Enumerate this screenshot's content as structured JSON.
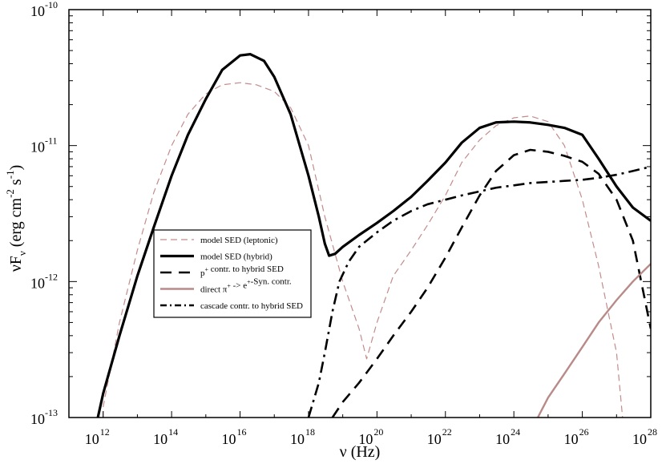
{
  "chart_data": {
    "type": "line",
    "xlabel": "ν (Hz)",
    "ylabel": "νF_ν (erg cm^-2 s^-1)",
    "ylabel_parts": {
      "base": "νF",
      "sub": "ν",
      "unit_open": " (erg cm",
      "exp1": "-2",
      "mid": " s",
      "exp2": "-1",
      "unit_close": ")"
    },
    "x_scale": "log",
    "y_scale": "log",
    "xlim": [
      100000000000.0,
      1e+28
    ],
    "ylim": [
      1e-13,
      1e-10
    ],
    "grid": false,
    "legend_position": "center-left",
    "x_ticks": [
      {
        "base": "10",
        "exp": "12",
        "value": 1000000000000.0
      },
      {
        "base": "10",
        "exp": "14",
        "value": 100000000000000.0
      },
      {
        "base": "10",
        "exp": "16",
        "value": 1e+16
      },
      {
        "base": "10",
        "exp": "18",
        "value": 1e+18
      },
      {
        "base": "10",
        "exp": "20",
        "value": 1e+20
      },
      {
        "base": "10",
        "exp": "22",
        "value": 1e+22
      },
      {
        "base": "10",
        "exp": "24",
        "value": 1e+24
      },
      {
        "base": "10",
        "exp": "26",
        "value": 1e+26
      },
      {
        "base": "10",
        "exp": "28",
        "value": 1e+28
      }
    ],
    "y_ticks": [
      {
        "base": "10",
        "exp": "-13",
        "value": 1e-13
      },
      {
        "base": "10",
        "exp": "-12",
        "value": 1e-12
      },
      {
        "base": "10",
        "exp": "-11",
        "value": 1e-11
      },
      {
        "base": "10",
        "exp": "-10",
        "value": 1e-10
      }
    ],
    "series": [
      {
        "name": "model SED (leptonic)",
        "legend_parts": [
          "model SED (leptonic)"
        ],
        "color": "#c48b8b",
        "style": "dashed-thin",
        "points": [
          [
            1000000000000.0,
            1e-13
          ],
          [
            1000000000000.0,
            1.2e-13
          ],
          [
            3000000000000.0,
            5e-13
          ],
          [
            10000000000000.0,
            1.7e-12
          ],
          [
            30000000000000.0,
            4.5e-12
          ],
          [
            100000000000000.0,
            1e-11
          ],
          [
            300000000000000.0,
            1.7e-11
          ],
          [
            1000000000000000.0,
            2.4e-11
          ],
          [
            3000000000000000.0,
            2.8e-11
          ],
          [
            1e+16,
            2.9e-11
          ],
          [
            3e+16,
            2.8e-11
          ],
          [
            1e+17,
            2.5e-11
          ],
          [
            3e+17,
            1.9e-11
          ],
          [
            1e+18,
            1e-11
          ],
          [
            3e+18,
            3e-12
          ],
          [
            1e+19,
            1e-12
          ],
          [
            3e+19,
            4.5e-13
          ],
          [
            5e+19,
            2.7e-13
          ],
          [
            1e+20,
            5e-13
          ],
          [
            3e+20,
            1.1e-12
          ],
          [
            1e+21,
            1.7e-12
          ],
          [
            3e+21,
            2.6e-12
          ],
          [
            1e+22,
            4.3e-12
          ],
          [
            3e+22,
            7.5e-12
          ],
          [
            1e+23,
            1.1e-11
          ],
          [
            3e+23,
            1.4e-11
          ],
          [
            1e+24,
            1.6e-11
          ],
          [
            3e+24,
            1.65e-11
          ],
          [
            1e+25,
            1.5e-11
          ],
          [
            3e+25,
            1e-11
          ],
          [
            1e+26,
            4e-12
          ],
          [
            3e+26,
            1.3e-12
          ],
          [
            1e+27,
            3e-13
          ],
          [
            1.5e+27,
            1e-13
          ]
        ]
      },
      {
        "name": "model SED (hybrid)",
        "legend_parts": [
          "model SED (hybrid)"
        ],
        "color": "#000000",
        "style": "solid-thick",
        "points": [
          [
            700000000000.0,
            1e-13
          ],
          [
            1000000000000.0,
            1.5e-13
          ],
          [
            3000000000000.0,
            4e-13
          ],
          [
            10000000000000.0,
            1.1e-12
          ],
          [
            30000000000000.0,
            2.5e-12
          ],
          [
            100000000000000.0,
            6e-12
          ],
          [
            300000000000000.0,
            1.2e-11
          ],
          [
            1000000000000000.0,
            2.2e-11
          ],
          [
            3000000000000000.0,
            3.6e-11
          ],
          [
            1e+16,
            4.6e-11
          ],
          [
            2e+16,
            4.7e-11
          ],
          [
            5e+16,
            4.2e-11
          ],
          [
            1e+17,
            3.2e-11
          ],
          [
            3e+17,
            1.7e-11
          ],
          [
            1e+18,
            6e-12
          ],
          [
            2e+18,
            3e-12
          ],
          [
            3e+18,
            1.9e-12
          ],
          [
            4e+18,
            1.55e-12
          ],
          [
            6e+18,
            1.6e-12
          ],
          [
            1e+19,
            1.8e-12
          ],
          [
            3e+19,
            2.2e-12
          ],
          [
            1e+20,
            2.7e-12
          ],
          [
            3e+20,
            3.3e-12
          ],
          [
            1e+21,
            4.2e-12
          ],
          [
            3e+21,
            5.5e-12
          ],
          [
            1e+22,
            7.5e-12
          ],
          [
            3e+22,
            1.05e-11
          ],
          [
            1e+23,
            1.35e-11
          ],
          [
            3e+23,
            1.48e-11
          ],
          [
            1e+24,
            1.5e-11
          ],
          [
            3e+24,
            1.48e-11
          ],
          [
            1e+25,
            1.42e-11
          ],
          [
            3e+25,
            1.35e-11
          ],
          [
            1e+26,
            1.2e-11
          ],
          [
            3e+26,
            8e-12
          ],
          [
            1e+27,
            5e-12
          ],
          [
            3e+27,
            3.5e-12
          ],
          [
            1e+28,
            2.8e-12
          ]
        ]
      },
      {
        "name": "p+ contr. to hybrid SED",
        "legend_parts": [
          "p",
          "+",
          " contr. to hybrid SED"
        ],
        "color": "#000000",
        "style": "dashed-thick",
        "points": [
          [
            5e+18,
            1e-13
          ],
          [
            1e+19,
            1.3e-13
          ],
          [
            3e+19,
            1.8e-13
          ],
          [
            1e+20,
            2.7e-13
          ],
          [
            3e+20,
            4e-13
          ],
          [
            1e+21,
            6e-13
          ],
          [
            3e+21,
            9e-13
          ],
          [
            1e+22,
            1.5e-12
          ],
          [
            3e+22,
            2.5e-12
          ],
          [
            1e+23,
            4.3e-12
          ],
          [
            3e+23,
            6.5e-12
          ],
          [
            1e+24,
            8.5e-12
          ],
          [
            3e+24,
            9.3e-12
          ],
          [
            1e+25,
            9e-12
          ],
          [
            3e+25,
            8.4e-12
          ],
          [
            1e+26,
            7.6e-12
          ],
          [
            3e+26,
            6.2e-12
          ],
          [
            1e+27,
            4e-12
          ],
          [
            3e+27,
            2e-12
          ],
          [
            1e+28,
            4.5e-13
          ]
        ]
      },
      {
        "name": "direct π+ -> e+-Syn. contr.",
        "legend_parts": [
          "direct π",
          "+",
          " -> e",
          "+",
          "-Syn. contr."
        ],
        "color": "#b88a88",
        "style": "solid-medium",
        "points": [
          [
            5e+24,
            1e-13
          ],
          [
            1e+25,
            1.4e-13
          ],
          [
            3e+25,
            2.1e-13
          ],
          [
            1e+26,
            3.3e-13
          ],
          [
            3e+26,
            5e-13
          ],
          [
            1e+27,
            7.3e-13
          ],
          [
            3e+27,
            1e-12
          ],
          [
            1e+28,
            1.35e-12
          ]
        ]
      },
      {
        "name": "cascade contr. to hybrid SED",
        "legend_parts": [
          "cascade contr. to hybrid SED"
        ],
        "color": "#000000",
        "style": "dashdot-thick",
        "points": [
          [
            1e+18,
            1e-13
          ],
          [
            2e+18,
            1.8e-13
          ],
          [
            3e+18,
            3e-13
          ],
          [
            5e+18,
            6e-13
          ],
          [
            8e+18,
            1e-12
          ],
          [
            1.5e+19,
            1.4e-12
          ],
          [
            3e+19,
            1.8e-12
          ],
          [
            1e+20,
            2.3e-12
          ],
          [
            3e+20,
            2.8e-12
          ],
          [
            1e+21,
            3.3e-12
          ],
          [
            3e+21,
            3.7e-12
          ],
          [
            1e+22,
            4e-12
          ],
          [
            3e+22,
            4.3e-12
          ],
          [
            1e+23,
            4.6e-12
          ],
          [
            3e+23,
            4.9e-12
          ],
          [
            1e+24,
            5.1e-12
          ],
          [
            3e+24,
            5.3e-12
          ],
          [
            1e+25,
            5.4e-12
          ],
          [
            3e+25,
            5.5e-12
          ],
          [
            1e+26,
            5.6e-12
          ],
          [
            3e+26,
            5.8e-12
          ],
          [
            1e+27,
            6.1e-12
          ],
          [
            3e+27,
            6.5e-12
          ],
          [
            1e+28,
            7e-12
          ]
        ]
      }
    ]
  }
}
